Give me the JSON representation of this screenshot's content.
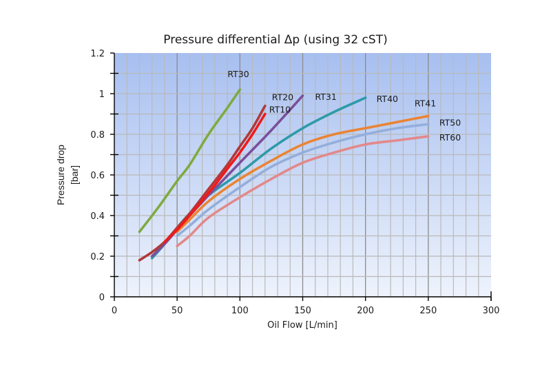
{
  "chart_data": {
    "type": "line",
    "title": "Pressure differential Δp (using 32 cST)",
    "xlabel": "Oil Flow [L/min]",
    "ylabel": [
      "Pressure drop",
      "[bar]"
    ],
    "xlim": [
      0,
      300
    ],
    "ylim": [
      0,
      1.2
    ],
    "x_ticks": [
      0,
      50,
      100,
      150,
      200,
      250,
      300
    ],
    "x_tick_labels": [
      "0",
      "50",
      "100",
      "150",
      "200",
      "250",
      "300"
    ],
    "y_ticks": [
      0,
      0.2,
      0.4,
      0.6,
      0.8,
      1.0,
      1.2
    ],
    "y_tick_labels": [
      "0",
      "0.2",
      "0.4",
      "0.6",
      "0.8",
      "1",
      "1.2"
    ],
    "x_minor_step": 10,
    "y_minor_step": 0.1,
    "grid": true,
    "legend": "inline-labels",
    "background_gradient": {
      "top": "#a7bff0",
      "bottom": "#eef3fc"
    },
    "series": [
      {
        "name": "RT30",
        "color": "#7faa3f",
        "points": [
          [
            20,
            0.32
          ],
          [
            35,
            0.44
          ],
          [
            50,
            0.57
          ],
          [
            60,
            0.65
          ],
          [
            75,
            0.8
          ],
          [
            90,
            0.93
          ],
          [
            100,
            1.02
          ]
        ]
      },
      {
        "name": "RT20",
        "color": "#b0393a",
        "points": [
          [
            20,
            0.18
          ],
          [
            30,
            0.22
          ],
          [
            40,
            0.27
          ],
          [
            50,
            0.34
          ],
          [
            60,
            0.41
          ],
          [
            75,
            0.53
          ],
          [
            90,
            0.65
          ],
          [
            100,
            0.74
          ],
          [
            110,
            0.83
          ],
          [
            120,
            0.94
          ]
        ]
      },
      {
        "name": "RT10",
        "color": "#f01a1a",
        "points": [
          [
            40,
            0.27
          ],
          [
            50,
            0.33
          ],
          [
            60,
            0.4
          ],
          [
            75,
            0.51
          ],
          [
            90,
            0.63
          ],
          [
            100,
            0.71
          ],
          [
            110,
            0.8
          ],
          [
            120,
            0.9
          ]
        ]
      },
      {
        "name": "RT31",
        "color": "#7a4f9a",
        "points": [
          [
            30,
            0.2
          ],
          [
            40,
            0.26
          ],
          [
            50,
            0.33
          ],
          [
            60,
            0.4
          ],
          [
            75,
            0.5
          ],
          [
            100,
            0.66
          ],
          [
            125,
            0.82
          ],
          [
            150,
            0.99
          ]
        ]
      },
      {
        "name": "RT40",
        "color": "#2e9aa9",
        "points": [
          [
            30,
            0.19
          ],
          [
            40,
            0.26
          ],
          [
            50,
            0.34
          ],
          [
            60,
            0.41
          ],
          [
            75,
            0.5
          ],
          [
            100,
            0.61
          ],
          [
            125,
            0.73
          ],
          [
            150,
            0.83
          ],
          [
            175,
            0.91
          ],
          [
            200,
            0.98
          ]
        ]
      },
      {
        "name": "RT41",
        "color": "#ea8434",
        "points": [
          [
            50,
            0.32
          ],
          [
            60,
            0.38
          ],
          [
            75,
            0.47
          ],
          [
            100,
            0.58
          ],
          [
            125,
            0.67
          ],
          [
            150,
            0.75
          ],
          [
            175,
            0.8
          ],
          [
            200,
            0.83
          ],
          [
            225,
            0.86
          ],
          [
            250,
            0.89
          ]
        ]
      },
      {
        "name": "RT50",
        "color": "#94aedb",
        "points": [
          [
            50,
            0.3
          ],
          [
            60,
            0.35
          ],
          [
            75,
            0.43
          ],
          [
            100,
            0.54
          ],
          [
            125,
            0.64
          ],
          [
            150,
            0.71
          ],
          [
            175,
            0.76
          ],
          [
            200,
            0.8
          ],
          [
            225,
            0.83
          ],
          [
            250,
            0.85
          ]
        ]
      },
      {
        "name": "RT60",
        "color": "#e2898b",
        "points": [
          [
            50,
            0.25
          ],
          [
            60,
            0.3
          ],
          [
            75,
            0.39
          ],
          [
            100,
            0.49
          ],
          [
            125,
            0.58
          ],
          [
            150,
            0.66
          ],
          [
            175,
            0.71
          ],
          [
            200,
            0.75
          ],
          [
            225,
            0.77
          ],
          [
            250,
            0.79
          ]
        ]
      }
    ],
    "annotations": [
      "RT30",
      "RT20",
      "RT10",
      "RT31",
      "RT40",
      "RT41",
      "RT50",
      "RT60"
    ]
  }
}
